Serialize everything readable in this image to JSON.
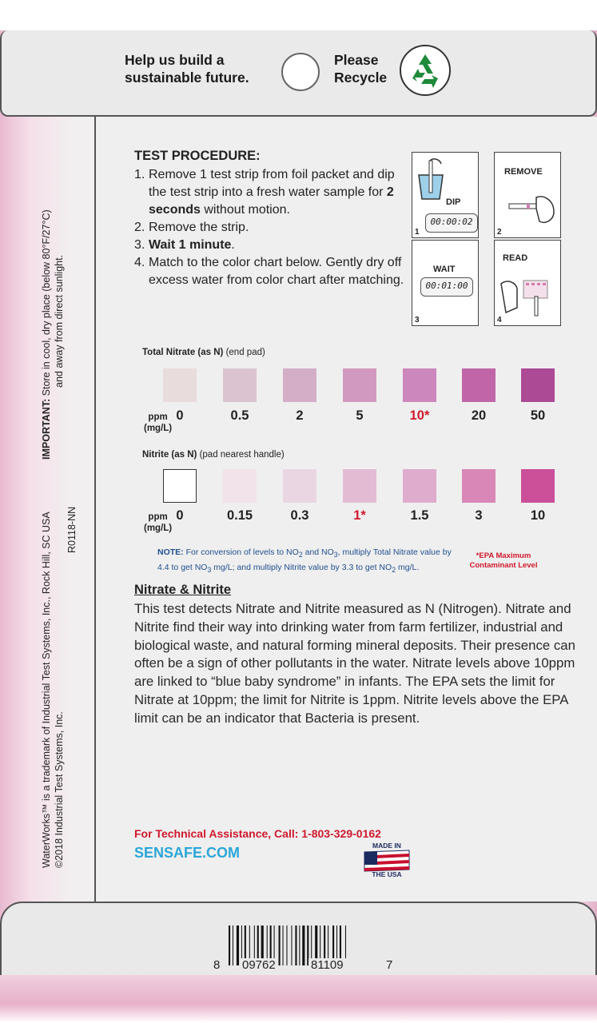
{
  "top_banner": {
    "left_line1": "Help us build a",
    "left_line2": "sustainable future.",
    "right_line1": "Please",
    "right_line2": "Recycle",
    "icon": "recycle-icon"
  },
  "sidebar": {
    "important_label": "IMPORTANT:",
    "important_line1": " Store in cool, dry place (below 80°F/27°C)",
    "important_line2": "and away from direct sunlight.",
    "trademark_line1": "WaterWorks™ is a trademark of Industrial Test Systems, Inc., Rock Hill, SC USA",
    "trademark_line2": "©2018 Industrial Test Systems, Inc.",
    "code": "R0118-NN"
  },
  "procedure": {
    "title": "TEST PROCEDURE:",
    "step1_num": "1.",
    "step1_a": "Remove 1 test strip from foil packet and dip the test strip into a fresh water sample for ",
    "step1_bold": "2 seconds",
    "step1_b": " without motion.",
    "step2_num": "2.",
    "step2": "Remove the strip.",
    "step3_num": "3.",
    "step3_bold": "Wait 1 minute",
    "step3_b": ".",
    "step4_num": "4.",
    "step4": "Match to the color chart below. Gently dry off excess water from color chart after matching."
  },
  "steps_illustration": {
    "dip_label": "DIP",
    "dip_time": "00:00:02",
    "n1": "1",
    "remove_label": "REMOVE",
    "n2": "2",
    "wait_label": "WAIT",
    "wait_time": "00:01:00",
    "n3": "3",
    "read_label": "READ",
    "n4": "4"
  },
  "nitrate": {
    "label_bold": "Total Nitrate (as N)",
    "label_rest": " (end pad)",
    "unit1": "ppm",
    "unit2": "(mg/L)",
    "values": [
      "0",
      "0.5",
      "2",
      "5",
      "10*",
      "20",
      "50"
    ],
    "colors": [
      "#e9dcdc",
      "#dbc4d0",
      "#d4aec7",
      "#d299c0",
      "#cc87bc",
      "#c066a8",
      "#ad4a96"
    ]
  },
  "nitrite": {
    "label_bold": "Nitrite (as N)",
    "label_rest": " (pad nearest handle)",
    "unit1": "ppm",
    "unit2": "(mg/L)",
    "values": [
      "0",
      "0.15",
      "0.3",
      "1*",
      "1.5",
      "3",
      "10"
    ],
    "colors": [
      "#ffffff",
      "#f2e3ea",
      "#ead6e3",
      "#e3bcd4",
      "#dfaccd",
      "#d887b7",
      "#cb4f99"
    ]
  },
  "note": {
    "label": "NOTE:",
    "a": " For conversion of levels to NO",
    "sub2": "2",
    "b": " and NO",
    "sub3": "3",
    "c": ", multiply Total Nitrate value by 4.4 to get NO",
    "sub3b": "3",
    "d": " mg/L; and multiply Nitrite value by 3.3 to get NO",
    "sub2b": "2",
    "e": " mg/L."
  },
  "epa_note": {
    "line1": "*EPA Maximum",
    "line2": "Contaminant Level"
  },
  "info": {
    "heading": "Nitrate & Nitrite",
    "body": "This test detects Nitrate and Nitrite measured as N (Nitrogen). Nitrate and Nitrite find their way into drinking water from farm fertilizer, industrial and biological waste, and natural forming mineral deposits. Their presence can often be a sign of other pollutants in the water. Nitrate levels above 10ppm are linked to “blue baby syndrome” in infants. The EPA sets the limit for Nitrate at 10ppm; the limit for Nitrite is 1ppm. Nitrite levels above the EPA limit can be an indicator that Bacteria is present."
  },
  "footer": {
    "assistance": "For Technical Assistance, Call: 1-803-329-0162",
    "website": "SENSAFE.COM",
    "made_in_1": "MADE IN",
    "made_in_2": "THE USA"
  },
  "barcode": {
    "left": "8",
    "mid1": "09762",
    "mid2": "81109",
    "right": "7"
  }
}
